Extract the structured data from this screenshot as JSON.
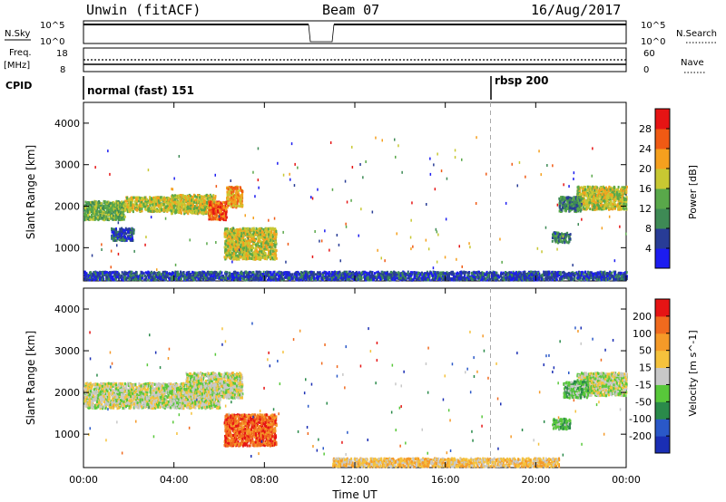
{
  "header": {
    "station": "Unwin (fitACF)",
    "beam": "Beam 07",
    "date": "16/Aug/2017"
  },
  "status_panels": {
    "nsky_label": "N.Sky",
    "nsearch_label": "N.Search",
    "freq_label_line1": "Freq.",
    "freq_label_line2": "[MHz]",
    "nave_label": "Nave",
    "cpid_label": "CPID",
    "noise_ticks_left": [
      "10^5",
      "10^0"
    ],
    "noise_ticks_right": [
      "10^5",
      "10^0"
    ],
    "freq_ticks": [
      "18",
      "8"
    ],
    "nave_ticks": [
      "60",
      "0"
    ],
    "cpid_segments": [
      {
        "label": "normal (fast) 151",
        "start_hour": 0
      },
      {
        "label": "rbsp 200",
        "start_hour": 18
      }
    ]
  },
  "chart_data": [
    {
      "type": "heatmap",
      "name": "power",
      "ylabel": "Slant Range [km]",
      "xlabel": "",
      "xlim_hours": [
        0,
        24
      ],
      "ylim": [
        200,
        4500
      ],
      "yticks": [
        1000,
        2000,
        3000,
        4000
      ],
      "xtick_labels": [
        "00:00",
        "04:00",
        "08:00",
        "12:00",
        "16:00",
        "20:00",
        "00:00"
      ],
      "colorbar": {
        "label": "Power [dB]",
        "ticks": [
          "4",
          "8",
          "12",
          "16",
          "20",
          "24",
          "28"
        ],
        "colors": [
          "#1c1cf0",
          "#283c96",
          "#3e8a55",
          "#59a84a",
          "#c8c832",
          "#f5a01e",
          "#f05a14",
          "#e61414"
        ]
      },
      "regions": [
        {
          "t0": 0.0,
          "t1": 1.8,
          "r0": 1700,
          "r1": 2150,
          "level": 3
        },
        {
          "t0": 1.8,
          "t1": 3.8,
          "r0": 1900,
          "r1": 2250,
          "level": 4
        },
        {
          "t0": 3.8,
          "t1": 5.8,
          "r0": 1850,
          "r1": 2300,
          "level": 4
        },
        {
          "t0": 5.5,
          "t1": 6.3,
          "r0": 1700,
          "r1": 2150,
          "level": 6
        },
        {
          "t0": 6.3,
          "t1": 7.0,
          "r0": 2000,
          "r1": 2500,
          "level": 5
        },
        {
          "t0": 6.2,
          "t1": 8.5,
          "r0": 750,
          "r1": 1500,
          "level": 4
        },
        {
          "t0": 1.2,
          "t1": 2.2,
          "r0": 1200,
          "r1": 1500,
          "level": 1
        },
        {
          "t0": 20.7,
          "t1": 21.5,
          "r0": 1150,
          "r1": 1400,
          "level": 2
        },
        {
          "t0": 21.8,
          "t1": 24.0,
          "r0": 1950,
          "r1": 2500,
          "level": 4
        },
        {
          "t0": 21.0,
          "t1": 22.0,
          "r0": 1900,
          "r1": 2250,
          "level": 2
        },
        {
          "t0": 0.0,
          "t1": 24.0,
          "r0": 250,
          "r1": 450,
          "level": 1
        }
      ]
    },
    {
      "type": "heatmap",
      "name": "velocity",
      "ylabel": "Slant Range [km]",
      "xlabel": "Time UT",
      "xlim_hours": [
        0,
        24
      ],
      "ylim": [
        200,
        4500
      ],
      "yticks": [
        1000,
        2000,
        3000,
        4000
      ],
      "xtick_labels": [
        "00:00",
        "04:00",
        "08:00",
        "12:00",
        "16:00",
        "20:00",
        "00:00"
      ],
      "colorbar": {
        "label": "Velocity [m s^-1]",
        "ticks": [
          "200",
          "100",
          "50",
          "15",
          "-15",
          "-50",
          "-100",
          "-200"
        ],
        "colors": [
          "#1a2eb4",
          "#2a58c8",
          "#2a8a4a",
          "#58c83a",
          "#c8c8c8",
          "#f5c23c",
          "#f59a28",
          "#f06a1e",
          "#e61414"
        ]
      },
      "regions": [
        {
          "t0": 0.0,
          "t1": 6.0,
          "r0": 1650,
          "r1": 2250,
          "level": 4
        },
        {
          "t0": 4.5,
          "t1": 7.0,
          "r0": 1900,
          "r1": 2500,
          "level": 4
        },
        {
          "t0": 6.2,
          "t1": 8.5,
          "r0": 750,
          "r1": 1500,
          "level": 7
        },
        {
          "t0": 20.7,
          "t1": 21.5,
          "r0": 1150,
          "r1": 1400,
          "level": 3
        },
        {
          "t0": 21.8,
          "t1": 24.0,
          "r0": 1950,
          "r1": 2500,
          "level": 4
        },
        {
          "t0": 21.2,
          "t1": 22.3,
          "r0": 1900,
          "r1": 2300,
          "level": 3
        },
        {
          "t0": 11.0,
          "t1": 21.0,
          "r0": 250,
          "r1": 450,
          "level": 5
        }
      ]
    }
  ]
}
